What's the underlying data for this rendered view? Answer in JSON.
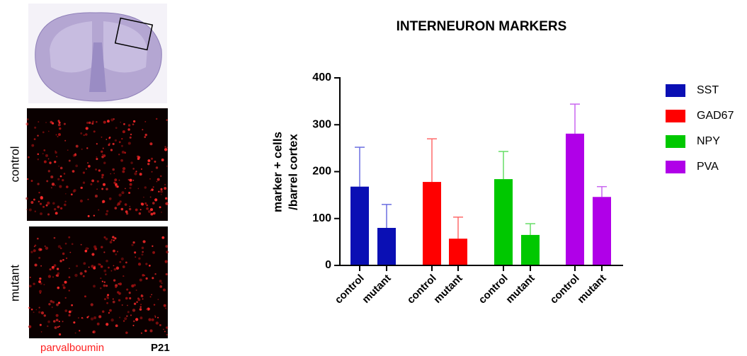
{
  "chart_data": {
    "type": "bar",
    "title": "INTERNEURON MARKERS",
    "y_label": [
      "marker + cells",
      "/barrel cortex"
    ],
    "categories": [
      "control",
      "mutant",
      "control",
      "mutant",
      "control",
      "mutant",
      "control",
      "mutant"
    ],
    "series": [
      {
        "name": "SST",
        "color": "#0a0fb4",
        "error_color": "#6b6ee0",
        "values": [
          168,
          80,
          null,
          null,
          null,
          null,
          null,
          null
        ],
        "errors": [
          84,
          50,
          null,
          null,
          null,
          null,
          null,
          null
        ]
      },
      {
        "name": "GAD67",
        "color": "#ff0000",
        "error_color": "#ff6a6a",
        "values": [
          null,
          null,
          178,
          57,
          null,
          null,
          null,
          null
        ],
        "errors": [
          null,
          null,
          92,
          46,
          null,
          null,
          null,
          null
        ]
      },
      {
        "name": "NPY",
        "color": "#00c800",
        "error_color": "#66dd66",
        "values": [
          null,
          null,
          null,
          null,
          184,
          65,
          null,
          null
        ],
        "errors": [
          null,
          null,
          null,
          null,
          59,
          24,
          null,
          null
        ]
      },
      {
        "name": "PVA",
        "color": "#b000e8",
        "error_color": "#c966f0",
        "values": [
          null,
          null,
          null,
          null,
          null,
          null,
          281,
          146
        ],
        "errors": [
          null,
          null,
          null,
          null,
          null,
          null,
          63,
          22
        ]
      }
    ],
    "ylim": [
      0,
      400
    ],
    "yticks": [
      0,
      100,
      200,
      300,
      400
    ],
    "grid": false,
    "legend": "right"
  },
  "image_panel": {
    "rows": [
      "control",
      "mutant"
    ],
    "stain": "parvalboumin",
    "age": "P21"
  }
}
